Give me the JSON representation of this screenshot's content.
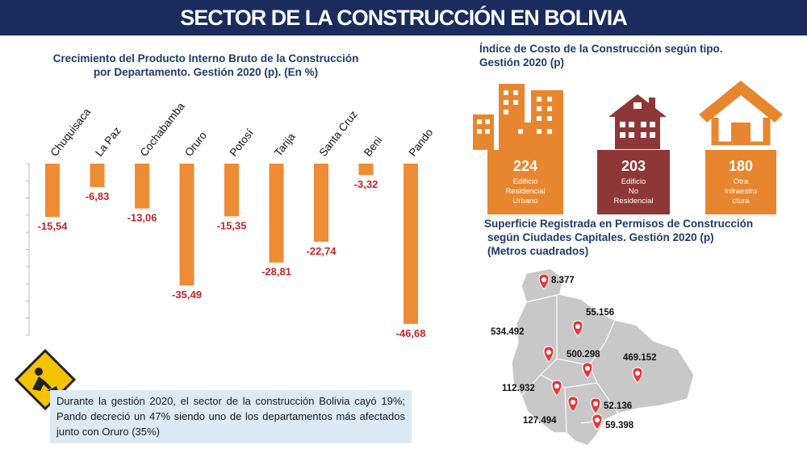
{
  "header": {
    "title": "SECTOR DE LA CONSTRUCCIÓN EN BOLIVIA"
  },
  "bar_chart_title_line1": "Crecimiento del Producto Interno Bruto de la Construcción",
  "bar_chart_title_line2": "por Departamento. Gestión 2020 (p). (En %)",
  "index_title_line1": "Índice de Costo de la Construcción según tipo.",
  "index_title_line2": "Gestión 2020 (p)",
  "index_cards": [
    {
      "value": "224",
      "label_lines": [
        "Edificio",
        "Residencial",
        "Urbano"
      ],
      "color": "#e7862f",
      "icon": "apartment-buildings-icon"
    },
    {
      "value": "203",
      "label_lines": [
        "Edificio",
        "No",
        "Residencial"
      ],
      "color": "#8e3737",
      "icon": "brick-house-icon"
    },
    {
      "value": "180",
      "label_lines": [
        "Otra",
        "Infraestru",
        "ctura"
      ],
      "color": "#e7862f",
      "icon": "house-outline-icon"
    }
  ],
  "map_title_line1": "Superficie Registrada en Permisos de Construcción",
  "map_title_line2": "según Ciudades Capitales. Gestión 2020 (p)",
  "map_title_line3": "(Metros cuadrados)",
  "map_values": [
    "8.377",
    "55.156",
    "534.492",
    "500.298",
    "469.152",
    "112.932",
    "52.136",
    "127.494",
    "59.398"
  ],
  "note": "Durante la gestión 2020, el sector de la construcción Bolivia cayó 19%; Pando decreció un 47% siendo uno de los departamentos más afectados junto con Oruro (35%)",
  "colors": {
    "bar": "#ee8c36",
    "label": "#c0262d",
    "banner": "#1a2b5e",
    "map": "#c8c8c8",
    "pin": "#e03a3a"
  },
  "chart_data": {
    "type": "bar",
    "categories": [
      "Chuquisaca",
      "La Paz",
      "Cochabamba",
      "Oruro",
      "Potosí",
      "Tarija",
      "Santa Cruz",
      "Beni",
      "Pando"
    ],
    "values": [
      -15.54,
      -6.83,
      -13.06,
      -35.49,
      -15.35,
      -28.81,
      -22.74,
      -3.32,
      -46.68
    ],
    "value_labels": [
      "-15,54",
      "-6,83",
      "-13,06",
      "-35,49",
      "-15,35",
      "-28,81",
      "-22,74",
      "-3,32",
      "-46,68"
    ],
    "ylim": [
      -50,
      0
    ],
    "grid": false
  }
}
